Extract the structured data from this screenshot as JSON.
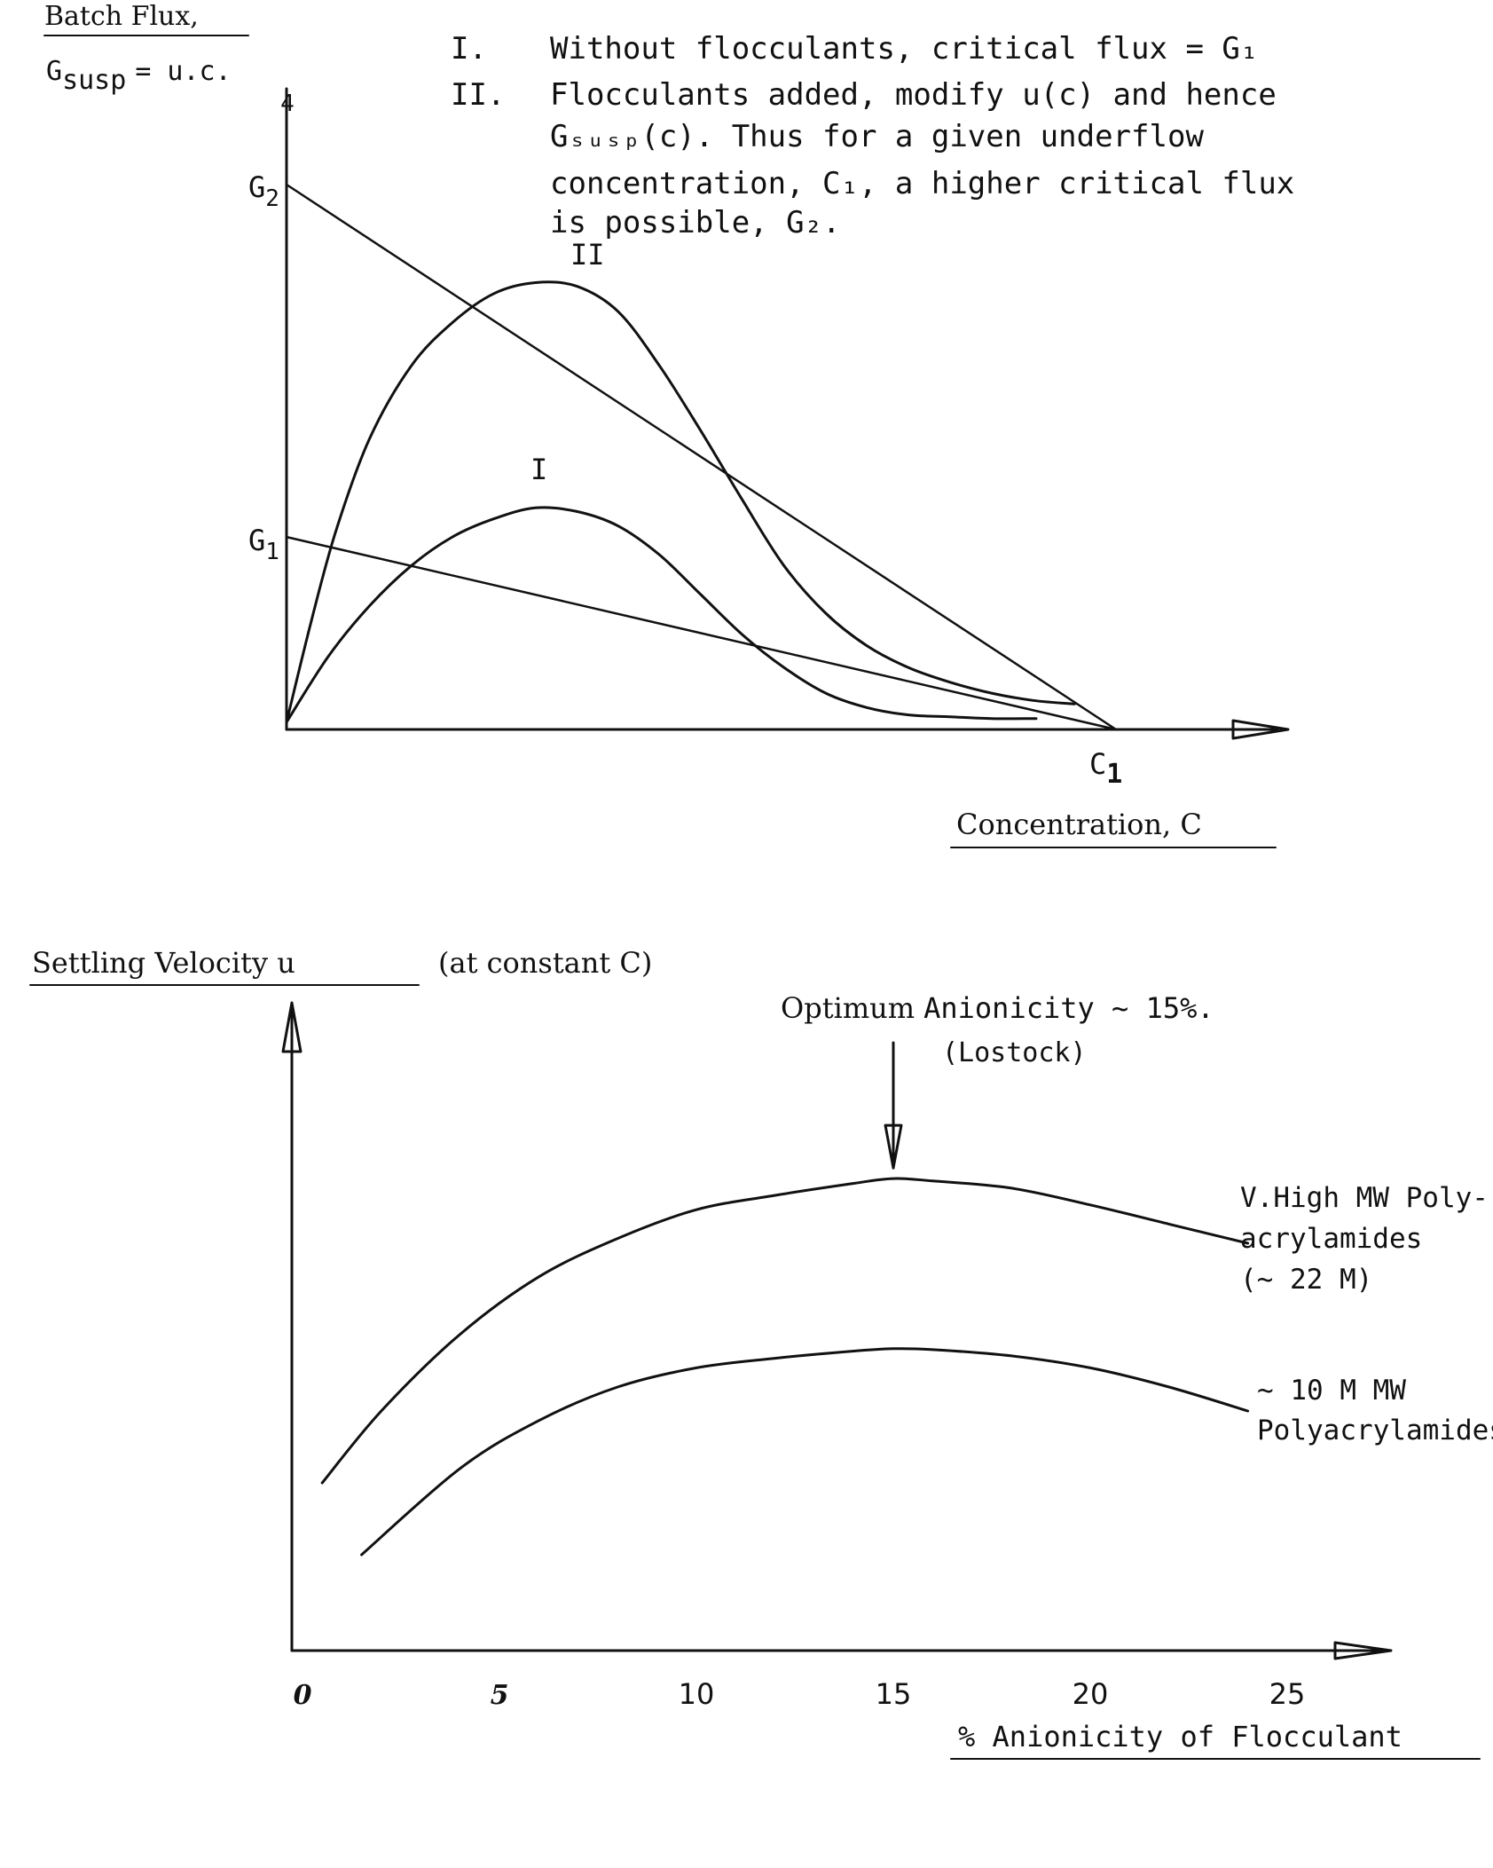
{
  "chart_data": [
    {
      "type": "line",
      "ylabel_line1": "Batch Flux,",
      "ylabel_line2_main": "G",
      "ylabel_line2_sub": "susp",
      "ylabel_line2_rest": "= u.c.",
      "y_axis_top_label": "4",
      "xlabel": "Concentration, C",
      "x_tick_main": "C",
      "x_tick_sub": "1",
      "y_tick_g2_main": "G",
      "y_tick_g2_sub": "2",
      "y_tick_g1_main": "G",
      "y_tick_g1_sub": "1",
      "notes": [
        {
          "roman": "I.",
          "lines": [
            "Without flocculants, critical flux = G₁"
          ]
        },
        {
          "roman": "II.",
          "lines": [
            "Flocculants added, modify u(c) and hence",
            "Gₛᵤₛₚ(c). Thus for a given underflow",
            "concentration, C₁, a higher critical flux",
            "is possible, G₂."
          ]
        }
      ],
      "series": [
        {
          "name": "I",
          "x": [
            0.0,
            0.05,
            0.1,
            0.15,
            0.2,
            0.25,
            0.3,
            0.35,
            0.4,
            0.45,
            0.5,
            0.55,
            0.6,
            0.65,
            0.7,
            0.75,
            0.8,
            0.85,
            0.9,
            0.9
          ],
          "y": [
            0.02,
            0.2,
            0.34,
            0.45,
            0.53,
            0.58,
            0.61,
            0.6,
            0.56,
            0.48,
            0.37,
            0.26,
            0.17,
            0.1,
            0.06,
            0.04,
            0.035,
            0.03,
            0.03,
            0.03
          ]
        },
        {
          "name": "II",
          "x": [
            0.0,
            0.03,
            0.06,
            0.1,
            0.15,
            0.2,
            0.25,
            0.3,
            0.35,
            0.4,
            0.45,
            0.5,
            0.55,
            0.6,
            0.65,
            0.7,
            0.75,
            0.8,
            0.85,
            0.9,
            0.95
          ],
          "y": [
            0.02,
            0.3,
            0.55,
            0.8,
            1.0,
            1.12,
            1.2,
            1.23,
            1.22,
            1.15,
            1.0,
            0.82,
            0.63,
            0.45,
            0.32,
            0.23,
            0.17,
            0.13,
            0.1,
            0.08,
            0.07
          ]
        },
        {
          "name": "G1 tangent",
          "x": [
            0.0,
            1.0
          ],
          "y": [
            0.53,
            0.0
          ]
        },
        {
          "name": "G2 tangent",
          "x": [
            0.0,
            1.0
          ],
          "y": [
            1.5,
            0.0
          ]
        }
      ],
      "series_labels": [
        "I",
        "II"
      ],
      "xlim": [
        0,
        1.2
      ],
      "ylim": [
        0,
        1.6
      ],
      "grid": false
    },
    {
      "type": "line",
      "ylabel": "Settling Velocity u",
      "ylabel_suffix": "(at constant C)",
      "xlabel": "% Anionicity of Flocculant",
      "x_ticks": [
        "0",
        "5",
        "10",
        "15",
        "20",
        "25"
      ],
      "annotation_title_serif": "Optimum",
      "annotation_title_mono": "Anionicity ~ 15%.",
      "annotation_sub": "(Lostock)",
      "annotation_x": 15,
      "series": [
        {
          "name": "V.High MW Poly- acrylamides (~ 22 M)",
          "label_lines": [
            "V.High MW Poly-",
            "acrylamides",
            "(~ 22 M)"
          ],
          "x": [
            0.5,
            2,
            4,
            6,
            8,
            10,
            12,
            14,
            15,
            16,
            18,
            20,
            22,
            24
          ],
          "y": [
            0.35,
            0.5,
            0.66,
            0.78,
            0.86,
            0.92,
            0.95,
            0.975,
            0.985,
            0.98,
            0.965,
            0.93,
            0.89,
            0.85
          ]
        },
        {
          "name": "~ 10 M MW Polyacrylamides",
          "label_lines": [
            "~ 10 M MW",
            "Polyacrylamides"
          ],
          "x": [
            1.5,
            4,
            6,
            8,
            10,
            12,
            14,
            15,
            16,
            18,
            20,
            22,
            24
          ],
          "y": [
            0.2,
            0.38,
            0.48,
            0.55,
            0.59,
            0.61,
            0.625,
            0.63,
            0.628,
            0.615,
            0.59,
            0.55,
            0.5
          ]
        }
      ],
      "xlim": [
        0,
        28
      ],
      "ylim": [
        0,
        1.2
      ],
      "grid": false
    }
  ]
}
